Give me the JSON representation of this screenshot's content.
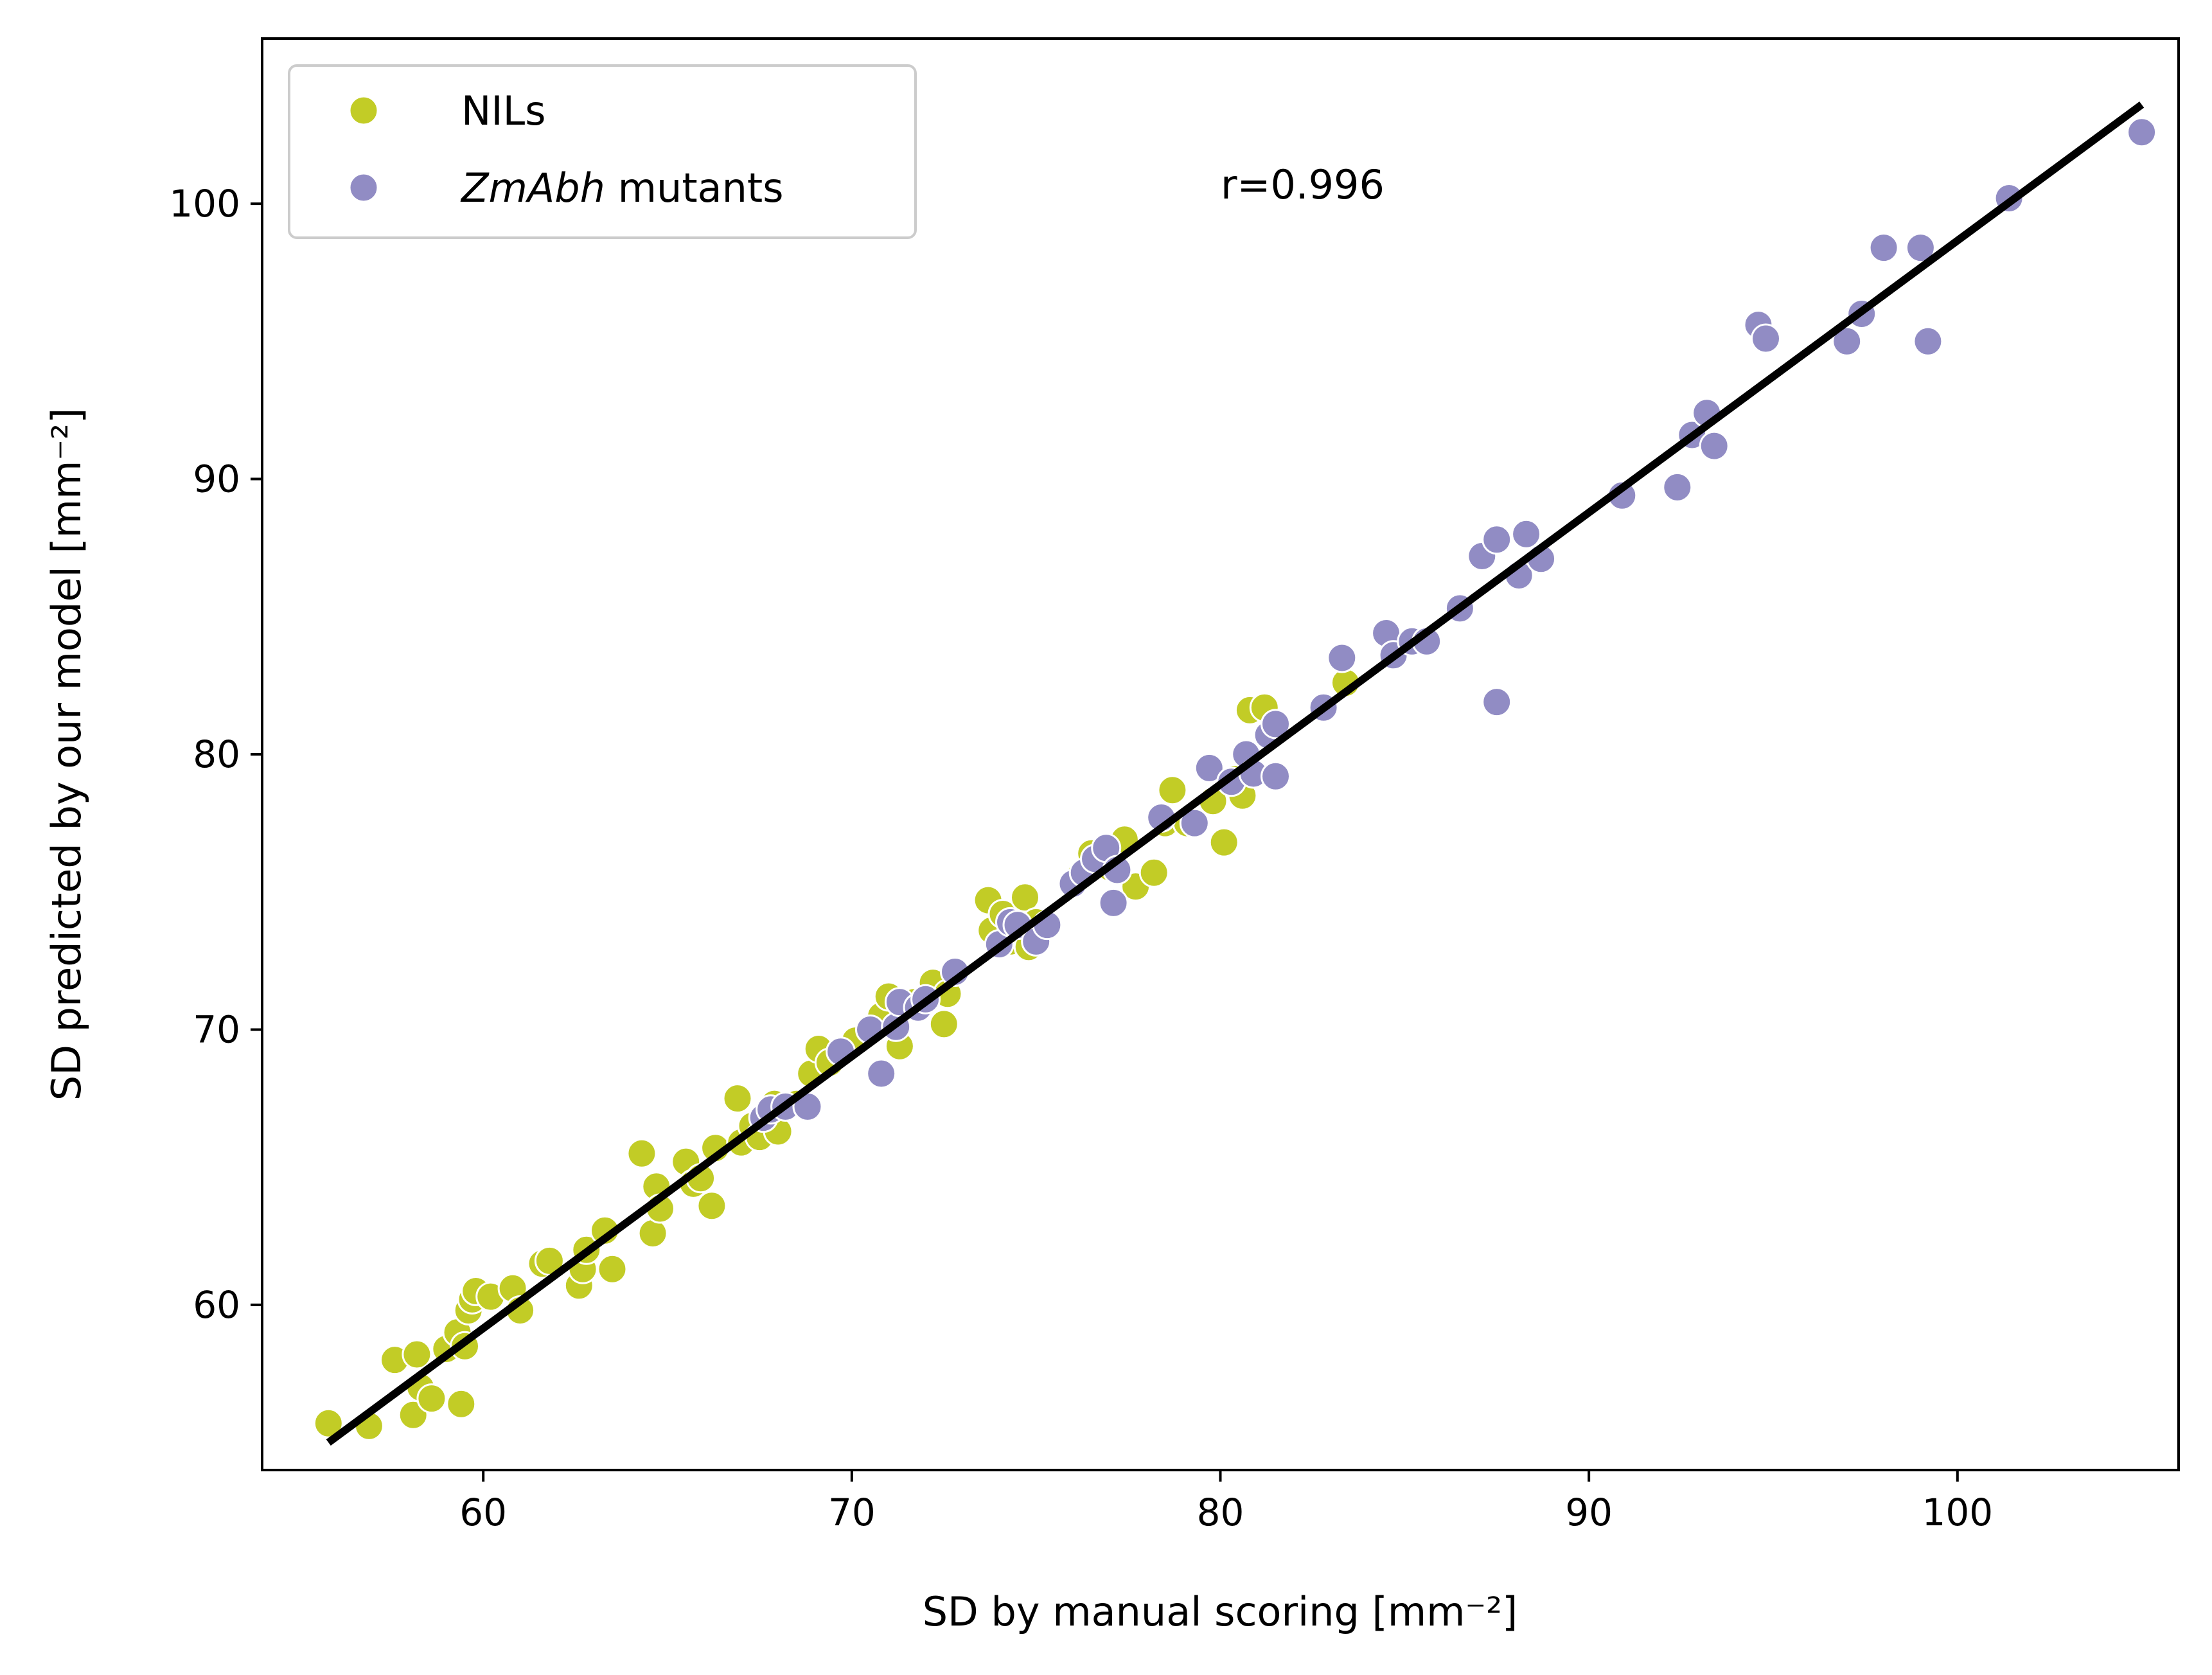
{
  "chart_data": {
    "type": "scatter",
    "title": "",
    "xlabel": "SD by manual scoring [mm⁻²]",
    "ylabel": "SD predicted by our model [mm⁻²]",
    "xlim": [
      54,
      106
    ],
    "ylim": [
      54,
      106
    ],
    "xticks": [
      60,
      70,
      80,
      90,
      100
    ],
    "yticks": [
      60,
      70,
      80,
      90,
      100
    ],
    "grid": false,
    "legend_position": "top-left",
    "annotation": "r=0.996",
    "fit_line": {
      "x": [
        55.8,
        105.0
      ],
      "y": [
        55.0,
        103.6
      ],
      "color": "#000000"
    },
    "series": [
      {
        "name": "NILs",
        "color": "#c2cc26",
        "points": [
          [
            55.8,
            55.7
          ],
          [
            56.9,
            55.6
          ],
          [
            57.6,
            58.0
          ],
          [
            58.1,
            56.0
          ],
          [
            58.2,
            58.2
          ],
          [
            58.3,
            57.0
          ],
          [
            58.6,
            56.6
          ],
          [
            59.0,
            58.4
          ],
          [
            59.3,
            59.0
          ],
          [
            59.4,
            56.4
          ],
          [
            59.5,
            58.5
          ],
          [
            59.6,
            59.8
          ],
          [
            59.7,
            60.2
          ],
          [
            59.8,
            60.5
          ],
          [
            60.2,
            60.3
          ],
          [
            60.8,
            60.6
          ],
          [
            61.0,
            59.8
          ],
          [
            61.6,
            61.5
          ],
          [
            61.8,
            61.6
          ],
          [
            62.6,
            60.7
          ],
          [
            62.7,
            61.3
          ],
          [
            62.8,
            62.0
          ],
          [
            63.3,
            62.7
          ],
          [
            63.5,
            61.3
          ],
          [
            64.3,
            65.5
          ],
          [
            64.6,
            62.6
          ],
          [
            64.7,
            64.3
          ],
          [
            64.8,
            63.5
          ],
          [
            65.5,
            65.2
          ],
          [
            65.7,
            64.4
          ],
          [
            65.9,
            64.6
          ],
          [
            66.2,
            63.6
          ],
          [
            66.3,
            65.7
          ],
          [
            66.9,
            67.5
          ],
          [
            67.0,
            65.9
          ],
          [
            67.3,
            66.5
          ],
          [
            67.5,
            66.1
          ],
          [
            67.8,
            66.8
          ],
          [
            67.9,
            67.3
          ],
          [
            68.0,
            66.3
          ],
          [
            68.5,
            67.3
          ],
          [
            68.9,
            68.4
          ],
          [
            69.1,
            69.3
          ],
          [
            69.4,
            68.8
          ],
          [
            70.1,
            69.6
          ],
          [
            70.8,
            70.5
          ],
          [
            71.0,
            71.2
          ],
          [
            71.3,
            69.4
          ],
          [
            71.7,
            71.0
          ],
          [
            72.2,
            71.7
          ],
          [
            72.5,
            70.2
          ],
          [
            72.6,
            71.3
          ],
          [
            73.7,
            74.7
          ],
          [
            73.8,
            73.6
          ],
          [
            74.1,
            74.2
          ],
          [
            74.3,
            73.2
          ],
          [
            74.7,
            74.8
          ],
          [
            74.8,
            73.0
          ],
          [
            75.0,
            73.9
          ],
          [
            76.2,
            75.6
          ],
          [
            76.5,
            76.4
          ],
          [
            77.0,
            75.9
          ],
          [
            77.4,
            76.9
          ],
          [
            77.7,
            75.2
          ],
          [
            78.2,
            75.7
          ],
          [
            78.5,
            77.5
          ],
          [
            78.7,
            78.7
          ],
          [
            79.1,
            77.5
          ],
          [
            79.8,
            78.3
          ],
          [
            80.1,
            76.8
          ],
          [
            80.4,
            79.1
          ],
          [
            80.6,
            78.5
          ],
          [
            80.8,
            81.6
          ],
          [
            81.2,
            81.7
          ],
          [
            81.5,
            80.9
          ],
          [
            83.4,
            82.6
          ]
        ]
      },
      {
        "name": "ZmAbh mutants",
        "color": "#918cc4",
        "points": [
          [
            67.6,
            66.8
          ],
          [
            67.8,
            67.1
          ],
          [
            68.2,
            67.2
          ],
          [
            68.8,
            67.2
          ],
          [
            69.7,
            69.2
          ],
          [
            70.5,
            70.0
          ],
          [
            70.8,
            68.4
          ],
          [
            71.2,
            70.1
          ],
          [
            71.3,
            71.0
          ],
          [
            71.8,
            70.8
          ],
          [
            72.0,
            71.1
          ],
          [
            72.8,
            72.1
          ],
          [
            74.0,
            73.1
          ],
          [
            74.3,
            73.9
          ],
          [
            74.5,
            73.8
          ],
          [
            75.0,
            73.2
          ],
          [
            75.3,
            73.8
          ],
          [
            76.0,
            75.3
          ],
          [
            76.3,
            75.7
          ],
          [
            76.6,
            76.2
          ],
          [
            76.9,
            76.6
          ],
          [
            77.1,
            74.6
          ],
          [
            77.2,
            75.8
          ],
          [
            78.4,
            77.7
          ],
          [
            79.3,
            77.5
          ],
          [
            79.7,
            79.5
          ],
          [
            80.3,
            79.0
          ],
          [
            80.7,
            80.0
          ],
          [
            80.9,
            79.3
          ],
          [
            81.3,
            80.7
          ],
          [
            81.5,
            79.2
          ],
          [
            81.5,
            81.1
          ],
          [
            82.8,
            81.7
          ],
          [
            83.3,
            83.5
          ],
          [
            84.5,
            84.4
          ],
          [
            84.7,
            83.6
          ],
          [
            85.2,
            84.1
          ],
          [
            85.6,
            84.1
          ],
          [
            86.5,
            85.3
          ],
          [
            87.1,
            87.2
          ],
          [
            87.5,
            81.9
          ],
          [
            87.5,
            87.8
          ],
          [
            88.1,
            86.5
          ],
          [
            88.3,
            88.0
          ],
          [
            88.7,
            87.1
          ],
          [
            90.9,
            89.4
          ],
          [
            92.4,
            89.7
          ],
          [
            92.8,
            91.6
          ],
          [
            93.2,
            92.4
          ],
          [
            93.4,
            91.2
          ],
          [
            94.6,
            95.6
          ],
          [
            94.8,
            95.1
          ],
          [
            97.0,
            95.0
          ],
          [
            97.4,
            96.0
          ],
          [
            98.0,
            98.4
          ],
          [
            99.0,
            98.4
          ],
          [
            99.2,
            95.0
          ],
          [
            101.4,
            100.2
          ],
          [
            105.0,
            102.6
          ]
        ]
      }
    ]
  },
  "legend": {
    "items": [
      {
        "label": "NILs"
      },
      {
        "label_italic": "ZmAbh",
        "label_rest": " mutants"
      }
    ]
  }
}
